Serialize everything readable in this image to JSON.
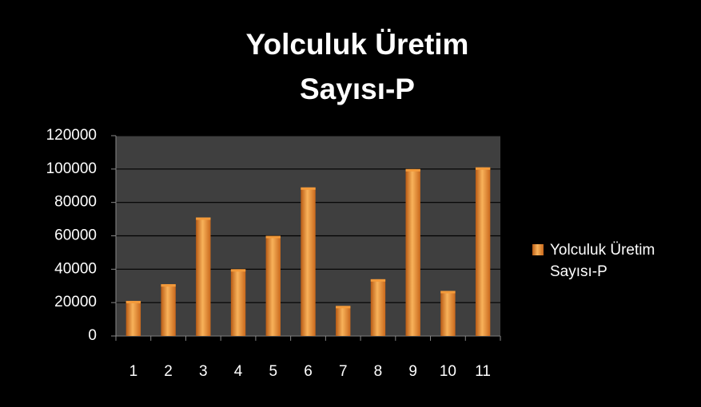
{
  "chart_data": {
    "type": "bar",
    "title": "Yolculuk Üretim Sayısı-P",
    "categories": [
      "1",
      "2",
      "3",
      "4",
      "5",
      "6",
      "7",
      "8",
      "9",
      "10",
      "11"
    ],
    "series": [
      {
        "name": "Yolculuk Üretim Sayısı-P",
        "color": "#f39a3a",
        "values": [
          21000,
          31000,
          71000,
          40000,
          60000,
          89000,
          18000,
          34000,
          100000,
          27000,
          101000
        ]
      }
    ],
    "ylim": [
      0,
      120000
    ],
    "yticks": [
      0,
      20000,
      40000,
      60000,
      80000,
      100000,
      120000
    ],
    "grid": true,
    "legend": "right"
  }
}
